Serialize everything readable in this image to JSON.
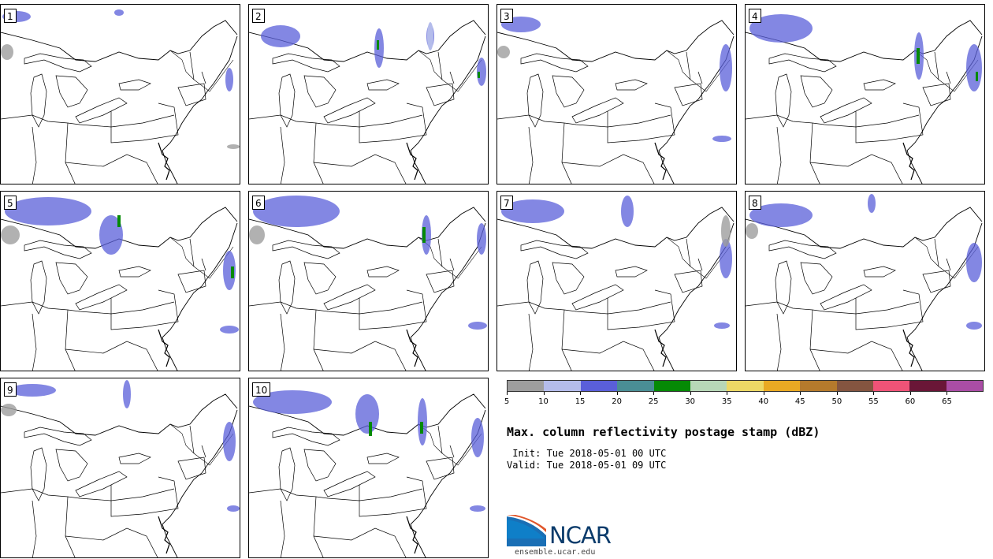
{
  "members": [
    "1",
    "2",
    "3",
    "4",
    "5",
    "6",
    "7",
    "8",
    "9",
    "10"
  ],
  "colorbar": {
    "colors": [
      "#9e9e9e",
      "#b4bceb",
      "#5a5fd9",
      "#4a8e95",
      "#058a05",
      "#b7d7b7",
      "#ecd865",
      "#e9a923",
      "#b57a2c",
      "#845540",
      "#ef5377",
      "#6a1637",
      "#aa4da5"
    ],
    "ticks": [
      "5",
      "10",
      "15",
      "20",
      "25",
      "30",
      "35",
      "40",
      "45",
      "50",
      "55",
      "60",
      "65"
    ]
  },
  "title": "Max. column reflectivity postage stamp (dBZ)",
  "init": " Init: Tue 2018-05-01 00 UTC",
  "valid": "Valid: Tue 2018-05-01 09 UTC",
  "logo": {
    "text": "NCAR",
    "website": "ensemble.ucar.edu"
  }
}
